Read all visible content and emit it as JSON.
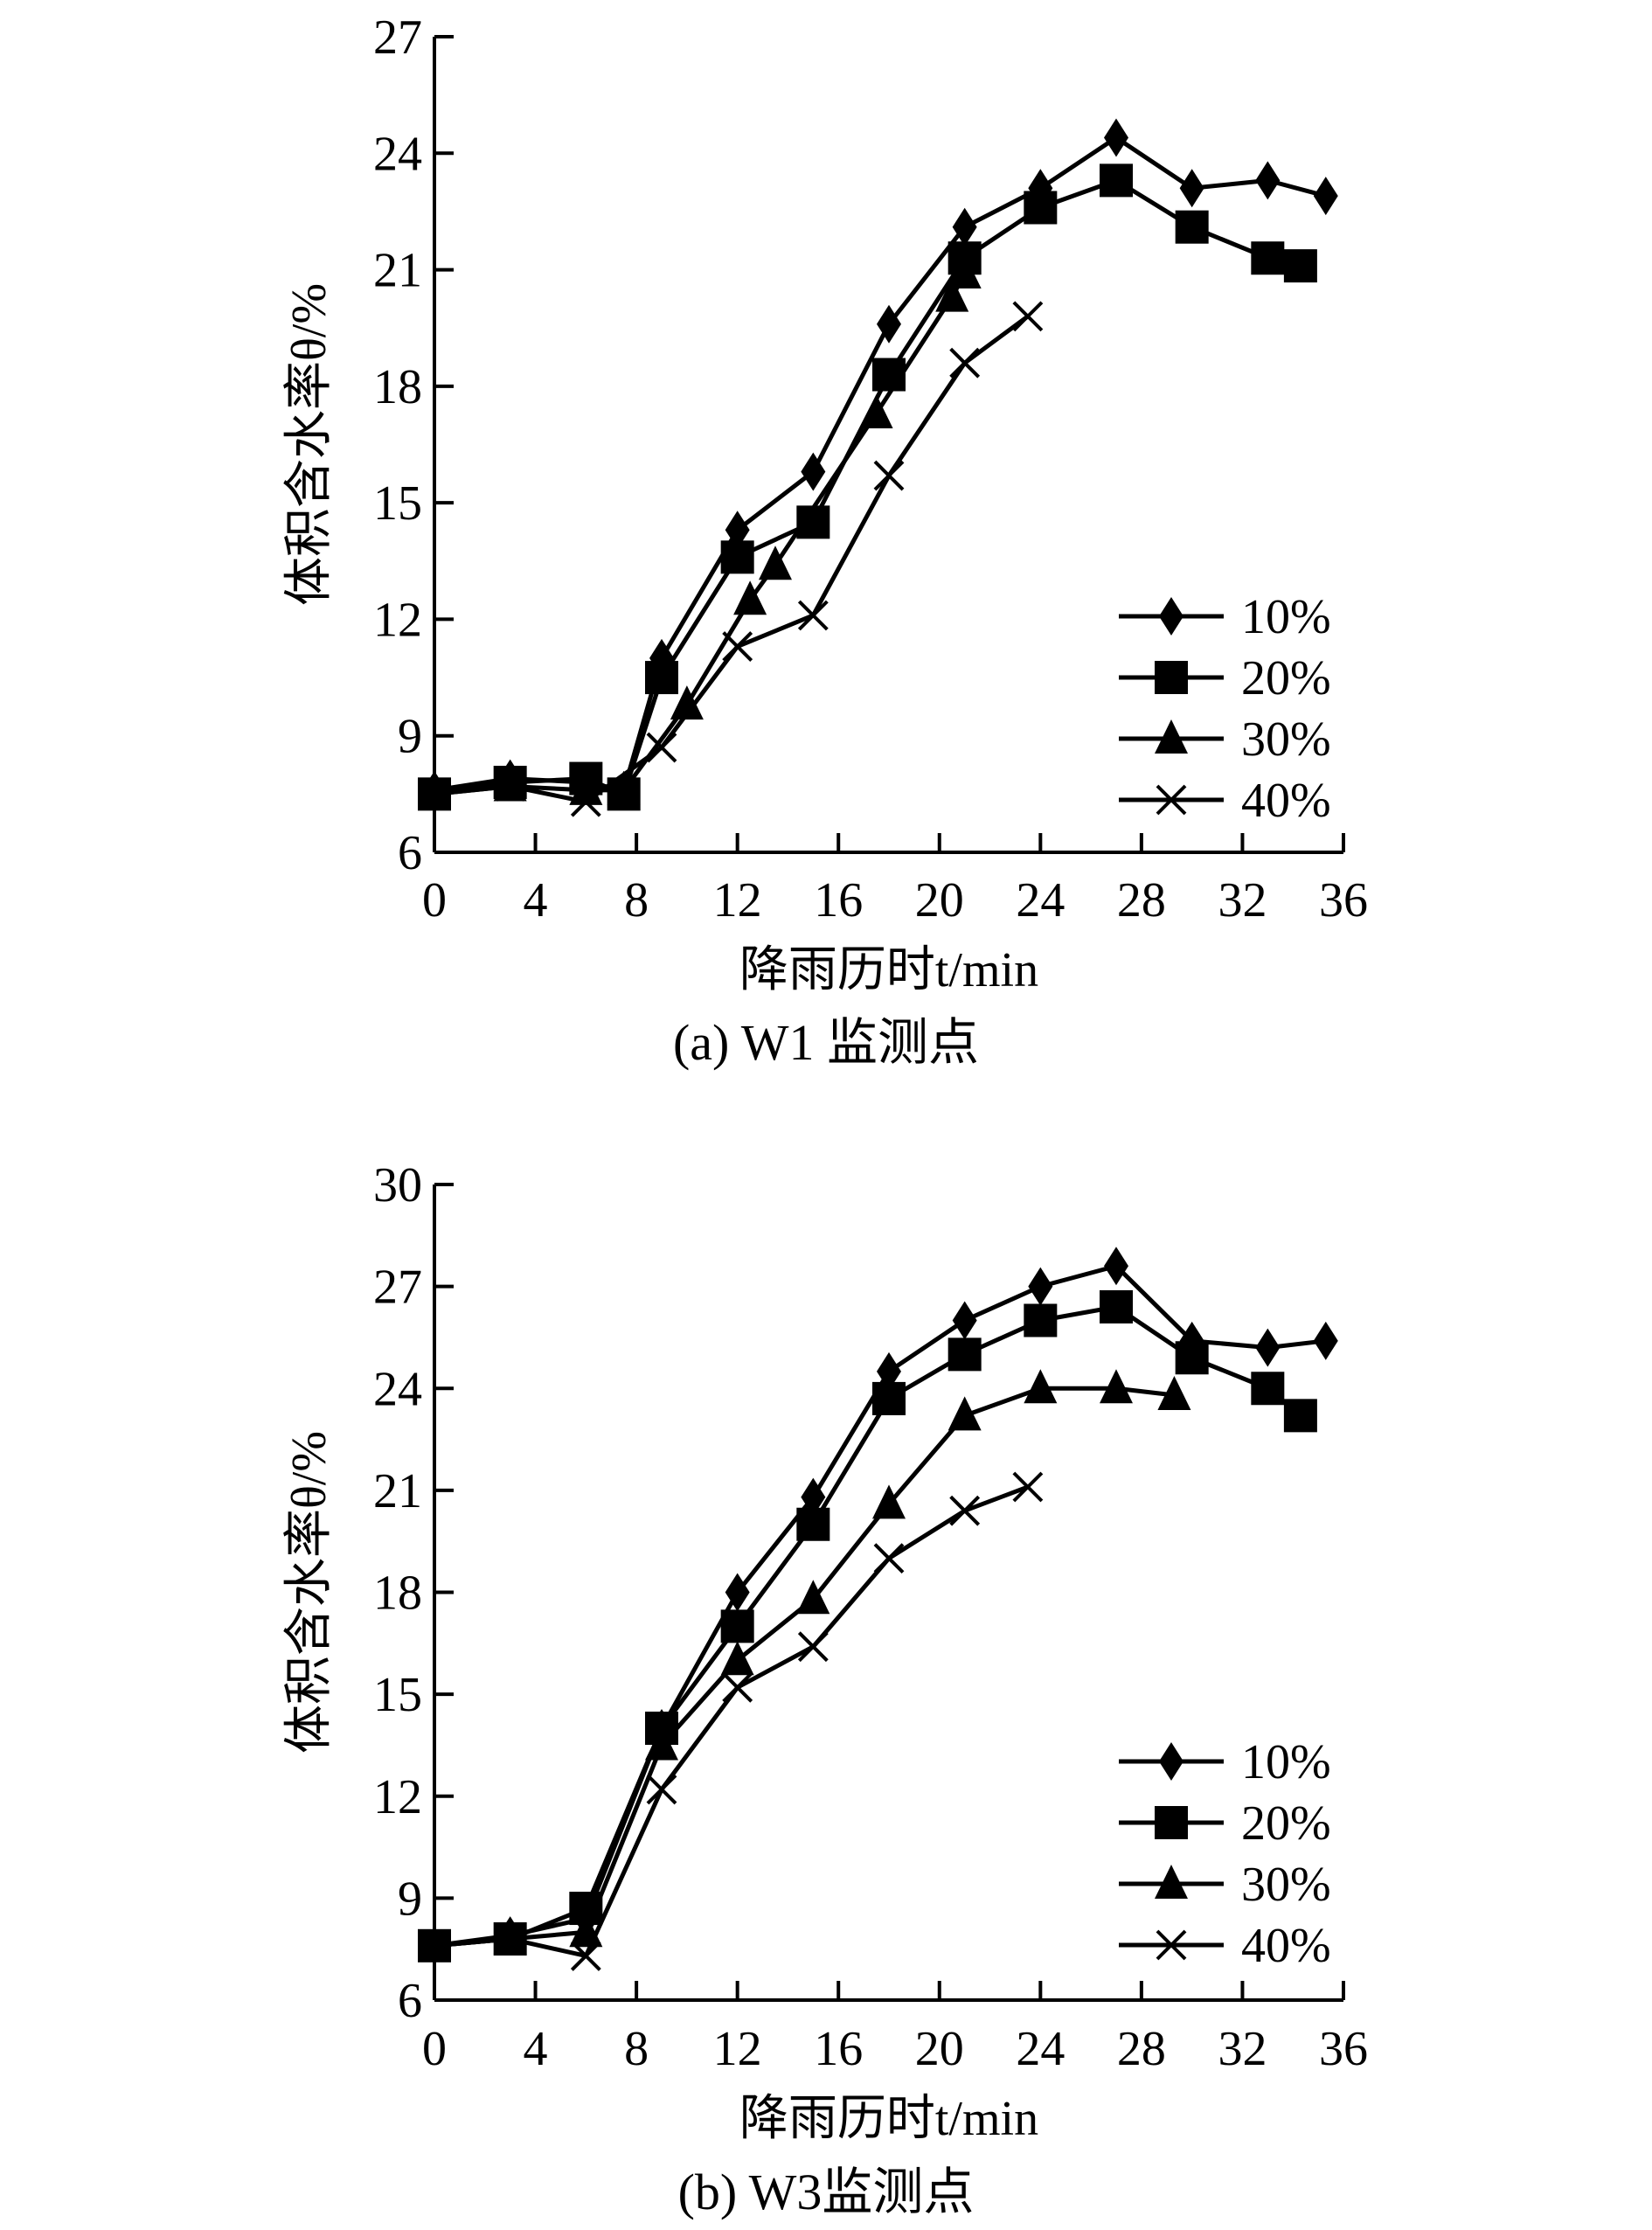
{
  "chart_data": [
    {
      "type": "line",
      "caption": "(a) W1 监测点",
      "xlabel": "降雨历时t/min",
      "ylabel": "体积含水率θ/%",
      "xlim": [
        0,
        36
      ],
      "ylim": [
        6,
        27
      ],
      "xticks": [
        0,
        4,
        8,
        12,
        16,
        20,
        24,
        28,
        32,
        36
      ],
      "yticks": [
        6,
        9,
        12,
        15,
        18,
        21,
        24,
        27
      ],
      "legend_position": "bottom-right",
      "series": [
        {
          "name": "10%",
          "marker": "diamond",
          "x": [
            0,
            3,
            6,
            7.5,
            9,
            12,
            15,
            18,
            21,
            24,
            27,
            30,
            33,
            35.3
          ],
          "y": [
            7.6,
            7.9,
            7.8,
            7.6,
            11.0,
            14.3,
            15.8,
            19.6,
            22.1,
            23.1,
            24.4,
            23.1,
            23.3,
            22.9
          ]
        },
        {
          "name": "20%",
          "marker": "square",
          "x": [
            0,
            3,
            6,
            7.5,
            9,
            12,
            15,
            18,
            21,
            24,
            27,
            30,
            33,
            34.3
          ],
          "y": [
            7.5,
            7.8,
            7.9,
            7.5,
            10.5,
            13.6,
            14.5,
            18.3,
            21.3,
            22.6,
            23.3,
            22.1,
            21.3,
            21.1
          ]
        },
        {
          "name": "30%",
          "marker": "triangle",
          "x": [
            0,
            3,
            6,
            7.5,
            10,
            12.5,
            13.5,
            17.5,
            20.5,
            21
          ],
          "y": [
            7.5,
            7.7,
            7.6,
            7.6,
            9.8,
            12.5,
            13.4,
            17.3,
            20.3,
            20.9
          ]
        },
        {
          "name": "40%",
          "marker": "cross",
          "x": [
            0,
            3,
            6,
            9,
            12,
            15,
            18,
            21,
            23.5
          ],
          "y": [
            7.5,
            7.7,
            7.3,
            8.7,
            11.3,
            12.1,
            15.7,
            18.6,
            19.8
          ]
        }
      ]
    },
    {
      "type": "line",
      "caption": "(b) W3监测点",
      "xlabel": "降雨历时t/min",
      "ylabel": "体积含水率θ/%",
      "xlim": [
        0,
        36
      ],
      "ylim": [
        6,
        30
      ],
      "xticks": [
        0,
        4,
        8,
        12,
        16,
        20,
        24,
        28,
        32,
        36
      ],
      "yticks": [
        6,
        9,
        12,
        15,
        18,
        21,
        24,
        27,
        30
      ],
      "legend_position": "bottom-right",
      "series": [
        {
          "name": "10%",
          "marker": "diamond",
          "x": [
            0,
            3,
            6,
            9,
            12,
            15,
            18,
            21,
            24,
            27,
            30,
            33,
            35.3
          ],
          "y": [
            7.6,
            7.9,
            8.4,
            14.0,
            18.0,
            20.8,
            24.5,
            26.0,
            27.0,
            27.6,
            25.4,
            25.2,
            25.4
          ]
        },
        {
          "name": "20%",
          "marker": "square",
          "x": [
            0,
            3,
            6,
            9,
            12,
            15,
            18,
            21,
            24,
            27,
            30,
            33,
            34.3
          ],
          "y": [
            7.6,
            7.8,
            8.7,
            14.0,
            17.0,
            20.0,
            23.7,
            25.0,
            26.0,
            26.4,
            24.9,
            24.0,
            23.2
          ]
        },
        {
          "name": "30%",
          "marker": "triangle",
          "x": [
            0,
            3,
            6,
            9,
            12,
            15,
            18,
            21,
            24,
            27,
            29.3
          ],
          "y": [
            7.6,
            7.8,
            8.0,
            13.5,
            16.0,
            17.8,
            20.6,
            23.2,
            24.0,
            24.0,
            23.8
          ]
        },
        {
          "name": "40%",
          "marker": "cross",
          "x": [
            0,
            3,
            6,
            9,
            12,
            15,
            18,
            21,
            23.5
          ],
          "y": [
            7.6,
            7.8,
            7.3,
            12.2,
            15.2,
            16.4,
            19.0,
            20.4,
            21.1
          ]
        }
      ]
    }
  ]
}
